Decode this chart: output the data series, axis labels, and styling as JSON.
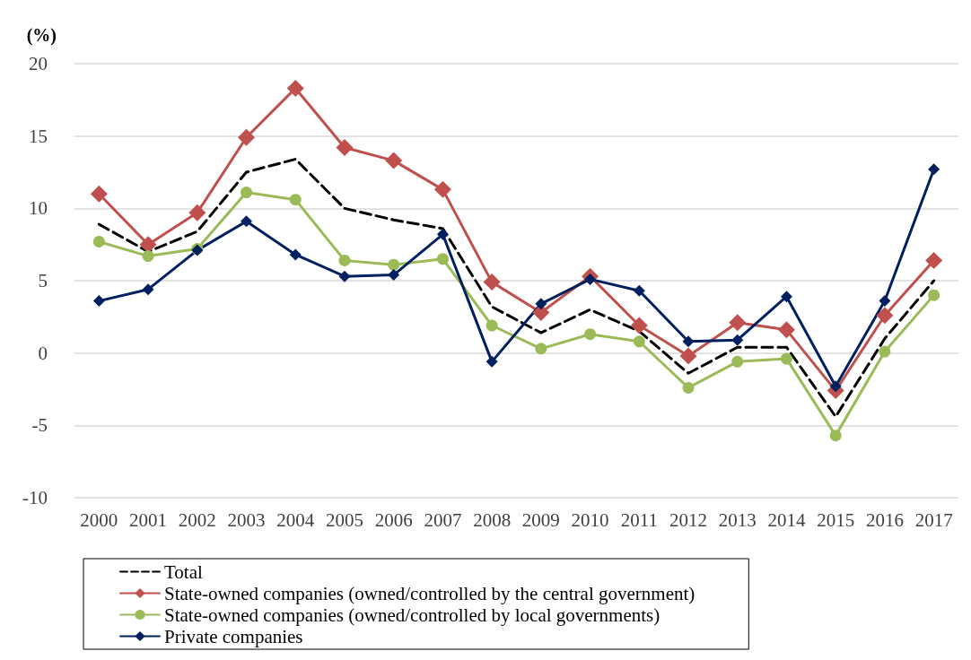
{
  "chart_data": {
    "type": "line",
    "ylabel": "(%)",
    "categories": [
      "2000",
      "2001",
      "2002",
      "2003",
      "2004",
      "2005",
      "2006",
      "2007",
      "2008",
      "2009",
      "2010",
      "2011",
      "2012",
      "2013",
      "2014",
      "2015",
      "2016",
      "2017"
    ],
    "ylim": [
      -10,
      20
    ],
    "yticks": [
      -10,
      -5,
      0,
      5,
      10,
      15,
      20
    ],
    "grid": "y",
    "legend": "bottom",
    "series": [
      {
        "name": "Total",
        "color": "#000000",
        "line_style": "dashed",
        "marker": "none",
        "values": [
          8.9,
          7.0,
          8.4,
          12.5,
          13.4,
          10.0,
          9.2,
          8.6,
          3.2,
          1.4,
          3.0,
          1.5,
          -1.4,
          0.4,
          0.4,
          -4.4,
          1.0,
          5.0
        ]
      },
      {
        "name": "State-owned companies (owned/controlled by the central government)",
        "color": "#c0504d",
        "line_style": "solid",
        "marker": "diamond",
        "values": [
          11.0,
          7.5,
          9.7,
          14.9,
          18.3,
          14.2,
          13.3,
          11.3,
          4.9,
          2.8,
          5.3,
          1.9,
          -0.2,
          2.1,
          1.6,
          -2.6,
          2.6,
          6.4
        ]
      },
      {
        "name": "State-owned companies (owned/controlled by local governments)",
        "color": "#9bbb59",
        "line_style": "solid",
        "marker": "circle",
        "values": [
          7.7,
          6.7,
          7.2,
          11.1,
          10.6,
          6.4,
          6.1,
          6.5,
          1.9,
          0.3,
          1.3,
          0.8,
          -2.4,
          -0.6,
          -0.4,
          -5.7,
          0.1,
          4.0
        ]
      },
      {
        "name": "Private companies",
        "color": "#002060",
        "line_style": "solid",
        "marker": "diamond",
        "values": [
          3.6,
          4.4,
          7.1,
          9.1,
          6.8,
          5.3,
          5.4,
          8.2,
          -0.6,
          3.4,
          5.1,
          4.3,
          0.8,
          0.9,
          3.9,
          -2.3,
          3.6,
          12.7
        ]
      }
    ]
  }
}
